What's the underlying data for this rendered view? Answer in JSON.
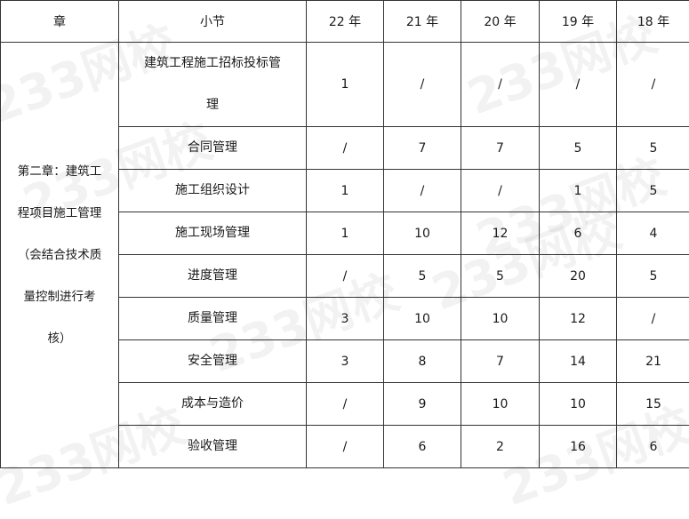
{
  "headers": [
    "章",
    "小节",
    "22 年",
    "21 年",
    "20 年",
    "19 年",
    "18 年"
  ],
  "chapter_lines": [
    "第二章：建筑工",
    "程项目施工管理",
    "（会结合技术质",
    "量控制进行考",
    "核）"
  ],
  "rows": [
    {
      "section_lines": [
        "建筑工程施工招标投标管",
        "理"
      ],
      "values": [
        "1",
        "/",
        "/",
        "/",
        "/"
      ]
    },
    {
      "section_lines": [
        "合同管理"
      ],
      "values": [
        "/",
        "7",
        "7",
        "5",
        "5"
      ]
    },
    {
      "section_lines": [
        "施工组织设计"
      ],
      "values": [
        "1",
        "/",
        "/",
        "1",
        "5"
      ]
    },
    {
      "section_lines": [
        "施工现场管理"
      ],
      "values": [
        "1",
        "10",
        "12",
        "6",
        "4"
      ]
    },
    {
      "section_lines": [
        "进度管理"
      ],
      "values": [
        "/",
        "5",
        "5",
        "20",
        "5"
      ]
    },
    {
      "section_lines": [
        "质量管理"
      ],
      "values": [
        "3",
        "10",
        "10",
        "12",
        "/"
      ]
    },
    {
      "section_lines": [
        "安全管理"
      ],
      "values": [
        "3",
        "8",
        "7",
        "14",
        "21"
      ]
    },
    {
      "section_lines": [
        "成本与造价"
      ],
      "values": [
        "/",
        "9",
        "10",
        "10",
        "15"
      ]
    },
    {
      "section_lines": [
        "验收管理"
      ],
      "values": [
        "/",
        "6",
        "2",
        "16",
        "6"
      ]
    }
  ],
  "watermark": "233网校"
}
